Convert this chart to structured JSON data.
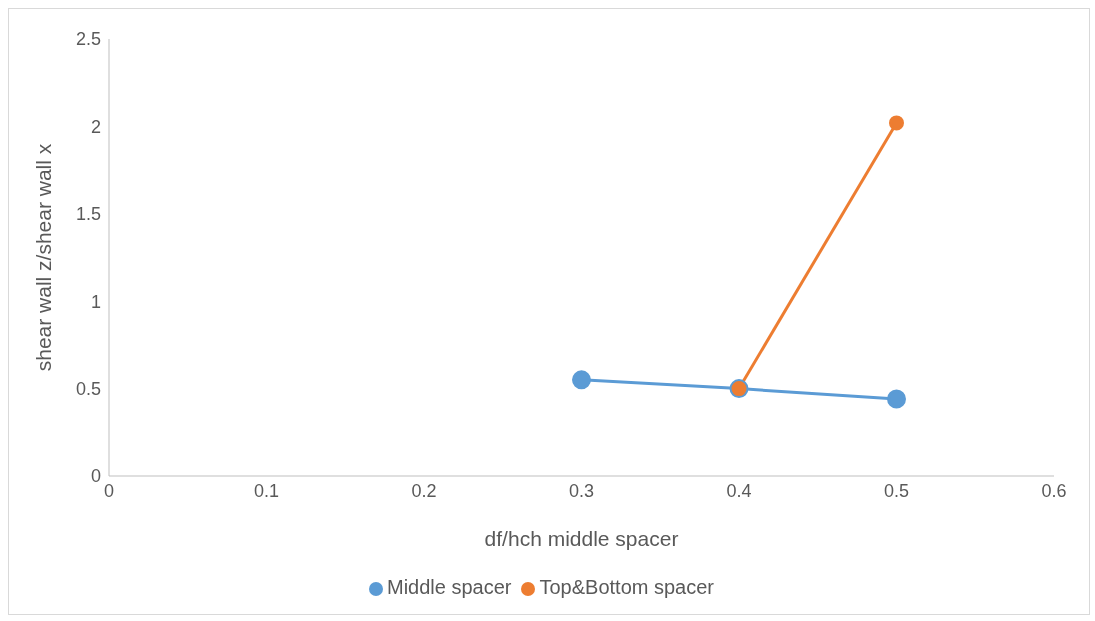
{
  "chart_data": {
    "type": "line",
    "xlabel": "df/hch middle spacer",
    "ylabel": "shear wall z/shear wall x",
    "xlim": [
      0,
      0.6
    ],
    "xticks": [
      0,
      0.1,
      0.2,
      0.3,
      0.4,
      0.5,
      0.6
    ],
    "ylim": [
      0,
      2.5
    ],
    "yticks": [
      0,
      0.5,
      1,
      1.5,
      2,
      2.5
    ],
    "grid": false,
    "legend": "bottom",
    "marker": "circle",
    "line_style": "solid",
    "series": [
      {
        "name": "Middle spacer",
        "color": "#5b9bd5",
        "x": [
          0.3,
          0.4,
          0.5
        ],
        "values": [
          0.55,
          0.5,
          0.44
        ]
      },
      {
        "name": "Top&Bottom spacer",
        "color": "#ed7d31",
        "x": [
          0.4,
          0.5
        ],
        "values": [
          0.5,
          2.02
        ]
      }
    ]
  }
}
